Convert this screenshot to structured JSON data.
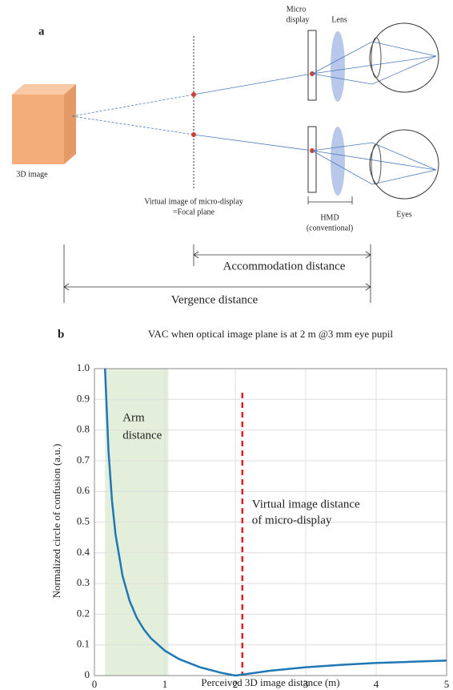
{
  "diagram": {
    "label": "a",
    "micro_display": [
      "Micro",
      "display"
    ],
    "lens": "Lens",
    "image_3d": "3D image",
    "virtual_image": [
      "Virtual image of micro-display",
      "=Focal plane"
    ],
    "hmd": [
      "HMD",
      "(conventional)"
    ],
    "eyes": "Eyes",
    "accommodation": "Accommodation distance",
    "vergence": "Vergence distance"
  },
  "chart_data": {
    "type": "line",
    "label": "b",
    "title": "VAC when optical image plane is at 2 m @3 mm eye pupil",
    "x_label": "Perceived 3D image distance (m)",
    "y_label": "Normalized circle of confusion (a.u.)",
    "xlim": [
      0,
      5
    ],
    "xticks": [
      0,
      1,
      2,
      3,
      4,
      5
    ],
    "ylim": [
      0,
      1
    ],
    "yticks": [
      0,
      0.1,
      0.2,
      0.3,
      0.4,
      0.5,
      0.6,
      0.7,
      0.8,
      0.9,
      {
        "value": 1,
        "label": "1.0"
      }
    ],
    "grid": true,
    "series": [
      {
        "color": "#1f77b4",
        "x": [
          0.15,
          0.2,
          0.25,
          0.3,
          0.4,
          0.5,
          0.6,
          0.7,
          0.8,
          1.0,
          1.2,
          1.5,
          1.8,
          2.0,
          2.5,
          3,
          3.5,
          4,
          4.5,
          5
        ],
        "values": [
          1.0,
          0.73,
          0.568,
          0.459,
          0.324,
          0.243,
          0.189,
          0.151,
          0.122,
          0.081,
          0.054,
          0.027,
          0.009,
          0,
          0.016,
          0.027,
          0.035,
          0.041,
          0.045,
          0.049
        ]
      }
    ],
    "shaded_region": {
      "x": [
        0.15,
        1.05
      ],
      "color": "#e3efda",
      "label": [
        "Arm",
        "distance"
      ]
    },
    "reference_line": {
      "x": 2.1,
      "color": "#e02020",
      "label": [
        "Virtual image distance",
        "of micro-display"
      ]
    }
  }
}
